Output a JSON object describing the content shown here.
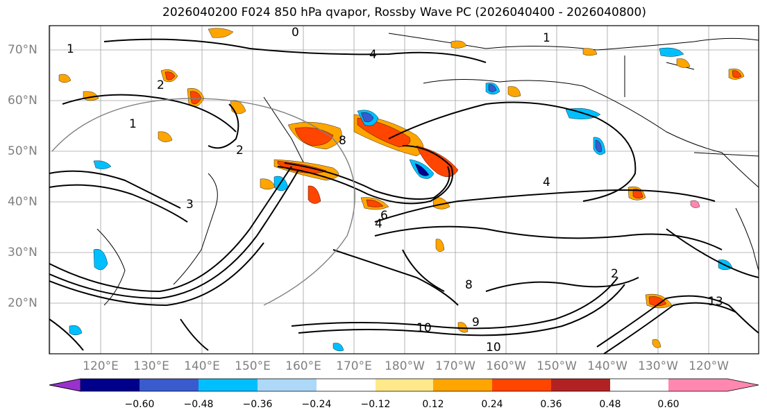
{
  "title": "2026040200 F024 850 hPa qvapor, Rossby Wave PC (2026040400 - 2026040800)",
  "lat_labels": [
    "70°N",
    "60°N",
    "50°N",
    "40°N",
    "30°N",
    "20°N"
  ],
  "lon_labels": [
    "120°E",
    "130°E",
    "140°E",
    "150°E",
    "160°E",
    "170°E",
    "180°W",
    "170°W",
    "160°W",
    "150°W",
    "140°W",
    "130°W",
    "120°W"
  ],
  "colorbar": {
    "colors": [
      "#9932cc",
      "#00008b",
      "#3a5bcd",
      "#00bfff",
      "#add8f7",
      "#ffffff",
      "#ffe98a",
      "#ffa500",
      "#ff4500",
      "#b22222",
      "#ff87b0"
    ],
    "tick_labels": [
      "−0.60",
      "−0.48",
      "−0.36",
      "−0.24",
      "−0.12",
      "0.12",
      "0.24",
      "0.36",
      "0.48",
      "0.60"
    ]
  },
  "contour_labels": [
    "0",
    "1",
    "1",
    "2",
    "2",
    "3",
    "4",
    "4",
    "6",
    "8",
    "8",
    "9",
    "10",
    "10",
    "13",
    "4",
    "1",
    "2"
  ]
}
